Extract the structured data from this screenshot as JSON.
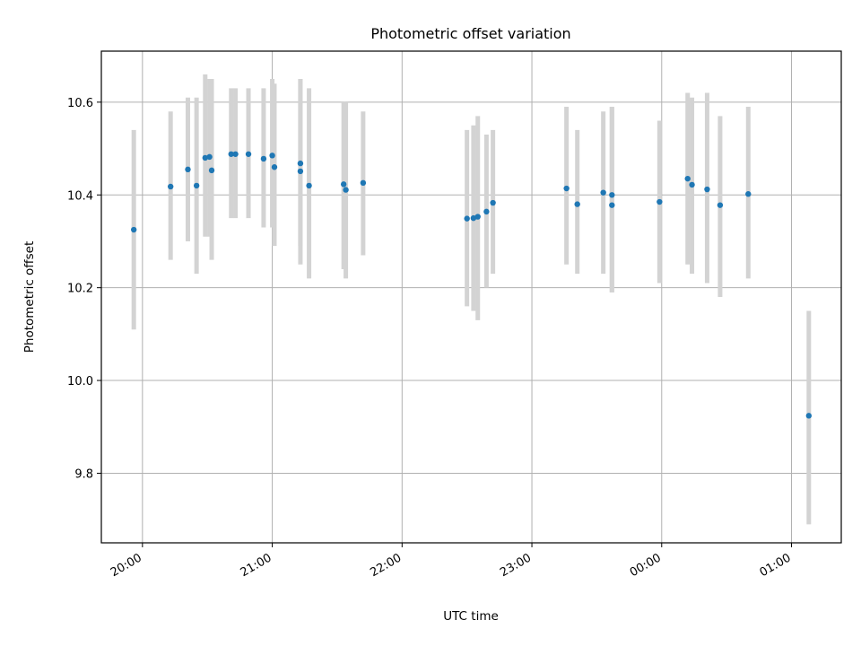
{
  "chart_data": {
    "type": "scatter",
    "title": "Photometric offset variation",
    "xlabel": "UTC time",
    "ylabel": "Photometric offset",
    "x_axis_kind": "time",
    "xlim": [
      "19:41",
      "01:23"
    ],
    "ylim": [
      9.65,
      10.71
    ],
    "grid": true,
    "x_ticks": [
      "20:00",
      "21:00",
      "22:00",
      "23:00",
      "00:00",
      "01:00"
    ],
    "y_ticks": [
      "9.8",
      "10.0",
      "10.2",
      "10.4",
      "10.6"
    ],
    "errorbar_color": "#d3d3d3",
    "marker_color": "#1f77b4",
    "points": [
      {
        "t": "19:56",
        "y": 10.325,
        "lo": 10.11,
        "hi": 10.54
      },
      {
        "t": "20:13",
        "y": 10.418,
        "lo": 10.26,
        "hi": 10.58
      },
      {
        "t": "20:21",
        "y": 10.455,
        "lo": 10.3,
        "hi": 10.61
      },
      {
        "t": "20:25",
        "y": 10.42,
        "lo": 10.23,
        "hi": 10.61
      },
      {
        "t": "20:29",
        "y": 10.48,
        "lo": 10.31,
        "hi": 10.66
      },
      {
        "t": "20:31",
        "y": 10.482,
        "lo": 10.31,
        "hi": 10.65
      },
      {
        "t": "20:32",
        "y": 10.453,
        "lo": 10.26,
        "hi": 10.65
      },
      {
        "t": "20:41",
        "y": 10.488,
        "lo": 10.35,
        "hi": 10.63
      },
      {
        "t": "20:43",
        "y": 10.488,
        "lo": 10.35,
        "hi": 10.63
      },
      {
        "t": "20:49",
        "y": 10.488,
        "lo": 10.35,
        "hi": 10.63
      },
      {
        "t": "20:56",
        "y": 10.478,
        "lo": 10.33,
        "hi": 10.63
      },
      {
        "t": "21:00",
        "y": 10.485,
        "lo": 10.33,
        "hi": 10.65
      },
      {
        "t": "21:01",
        "y": 10.46,
        "lo": 10.29,
        "hi": 10.64
      },
      {
        "t": "21:13",
        "y": 10.468,
        "lo": 10.29,
        "hi": 10.65
      },
      {
        "t": "21:13",
        "y": 10.451,
        "lo": 10.25,
        "hi": 10.65
      },
      {
        "t": "21:17",
        "y": 10.42,
        "lo": 10.22,
        "hi": 10.63
      },
      {
        "t": "21:33",
        "y": 10.423,
        "lo": 10.24,
        "hi": 10.6
      },
      {
        "t": "21:34",
        "y": 10.411,
        "lo": 10.22,
        "hi": 10.6
      },
      {
        "t": "21:42",
        "y": 10.426,
        "lo": 10.27,
        "hi": 10.58
      },
      {
        "t": "22:30",
        "y": 10.349,
        "lo": 10.16,
        "hi": 10.54
      },
      {
        "t": "22:33",
        "y": 10.35,
        "lo": 10.15,
        "hi": 10.55
      },
      {
        "t": "22:35",
        "y": 10.353,
        "lo": 10.13,
        "hi": 10.57
      },
      {
        "t": "22:39",
        "y": 10.364,
        "lo": 10.2,
        "hi": 10.53
      },
      {
        "t": "22:42",
        "y": 10.383,
        "lo": 10.23,
        "hi": 10.54
      },
      {
        "t": "23:16",
        "y": 10.414,
        "lo": 10.25,
        "hi": 10.59
      },
      {
        "t": "23:21",
        "y": 10.38,
        "lo": 10.23,
        "hi": 10.54
      },
      {
        "t": "23:33",
        "y": 10.405,
        "lo": 10.23,
        "hi": 10.58
      },
      {
        "t": "23:37",
        "y": 10.4,
        "lo": 10.19,
        "hi": 10.59
      },
      {
        "t": "23:37",
        "y": 10.378,
        "lo": 10.19,
        "hi": 10.59
      },
      {
        "t": "23:59",
        "y": 10.385,
        "lo": 10.21,
        "hi": 10.56
      },
      {
        "t": "00:12",
        "y": 10.435,
        "lo": 10.25,
        "hi": 10.62
      },
      {
        "t": "00:14",
        "y": 10.422,
        "lo": 10.23,
        "hi": 10.61
      },
      {
        "t": "00:21",
        "y": 10.412,
        "lo": 10.21,
        "hi": 10.62
      },
      {
        "t": "00:27",
        "y": 10.378,
        "lo": 10.18,
        "hi": 10.57
      },
      {
        "t": "00:40",
        "y": 10.402,
        "lo": 10.22,
        "hi": 10.59
      },
      {
        "t": "01:08",
        "y": 9.924,
        "lo": 9.69,
        "hi": 10.15
      }
    ]
  }
}
